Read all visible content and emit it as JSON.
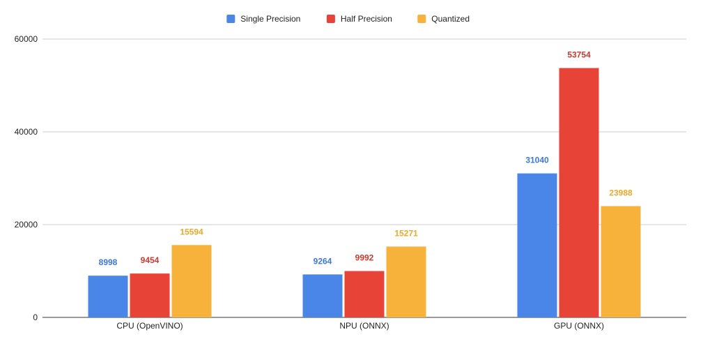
{
  "chart_data": {
    "type": "bar",
    "title": "",
    "xlabel": "",
    "ylabel": "",
    "categories": [
      "CPU (OpenVINO)",
      "NPU (ONNX)",
      "GPU (ONNX)"
    ],
    "series": [
      {
        "name": "Single Precision",
        "color": "#4a86e8",
        "label_color": "#3c78d8",
        "values": [
          8998,
          9264,
          31040
        ]
      },
      {
        "name": "Half Precision",
        "color": "#e84337",
        "label_color": "#cc3a2f",
        "values": [
          9454,
          9992,
          53754
        ]
      },
      {
        "name": "Quantized",
        "color": "#f6b23a",
        "label_color": "#e8a92e",
        "values": [
          15594,
          15271,
          23988
        ]
      }
    ],
    "ylim": [
      0,
      60000
    ],
    "yticks": [
      0,
      20000,
      40000,
      60000
    ],
    "ytick_labels": [
      "0",
      "20000",
      "40000",
      "60000"
    ],
    "grid": true,
    "legend_position": "top-center",
    "data_labels": true
  }
}
